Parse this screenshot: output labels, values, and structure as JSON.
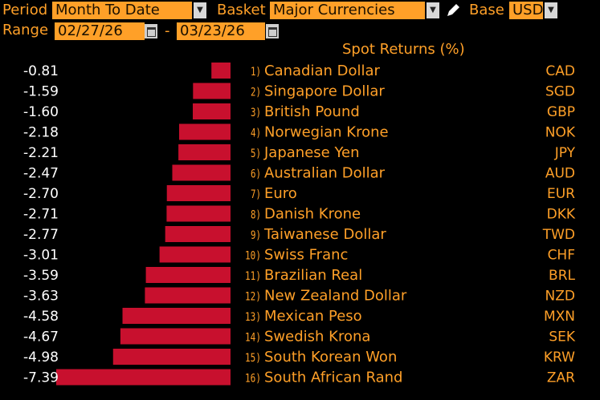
{
  "toolbar": {
    "period_label": "Period",
    "period_value": "Month To Date",
    "basket_label": "Basket",
    "basket_value": "Major Currencies",
    "base_label": "Base",
    "base_value": "USD",
    "range_label": "Range",
    "range_start": "02/27/26",
    "range_sep": "-",
    "range_end": "03/23/26"
  },
  "colors": {
    "accent": "#ffa028",
    "bar": "#c8102e",
    "background": "#000000"
  },
  "chart_data": {
    "type": "bar",
    "orientation": "horizontal",
    "title": "Spot Returns (%)",
    "categories": [
      "Canadian Dollar",
      "Singapore Dollar",
      "British Pound",
      "Norwegian Krone",
      "Japanese Yen",
      "Australian Dollar",
      "Euro",
      "Danish Krone",
      "Taiwanese Dollar",
      "Swiss Franc",
      "Brazilian Real",
      "New Zealand Dollar",
      "Mexican Peso",
      "Swedish Krona",
      "South Korean Won",
      "South African Rand"
    ],
    "ranks": [
      "1)",
      "2)",
      "3)",
      "4)",
      "5)",
      "6)",
      "7)",
      "8)",
      "9)",
      "10)",
      "11)",
      "12)",
      "13)",
      "14)",
      "15)",
      "16)"
    ],
    "codes": [
      "CAD",
      "SGD",
      "GBP",
      "NOK",
      "JPY",
      "AUD",
      "EUR",
      "DKK",
      "TWD",
      "CHF",
      "BRL",
      "NZD",
      "MXN",
      "SEK",
      "KRW",
      "ZAR"
    ],
    "values": [
      -0.81,
      -1.59,
      -1.6,
      -2.18,
      -2.21,
      -2.47,
      -2.7,
      -2.71,
      -2.77,
      -3.01,
      -3.59,
      -3.63,
      -4.58,
      -4.67,
      -4.98,
      -7.39
    ],
    "value_labels": [
      "-0.81",
      "-1.59",
      "-1.60",
      "-2.18",
      "-2.21",
      "-2.47",
      "-2.70",
      "-2.71",
      "-2.77",
      "-3.01",
      "-3.59",
      "-3.63",
      "-4.58",
      "-4.67",
      "-4.98",
      "-7.39"
    ]
  }
}
